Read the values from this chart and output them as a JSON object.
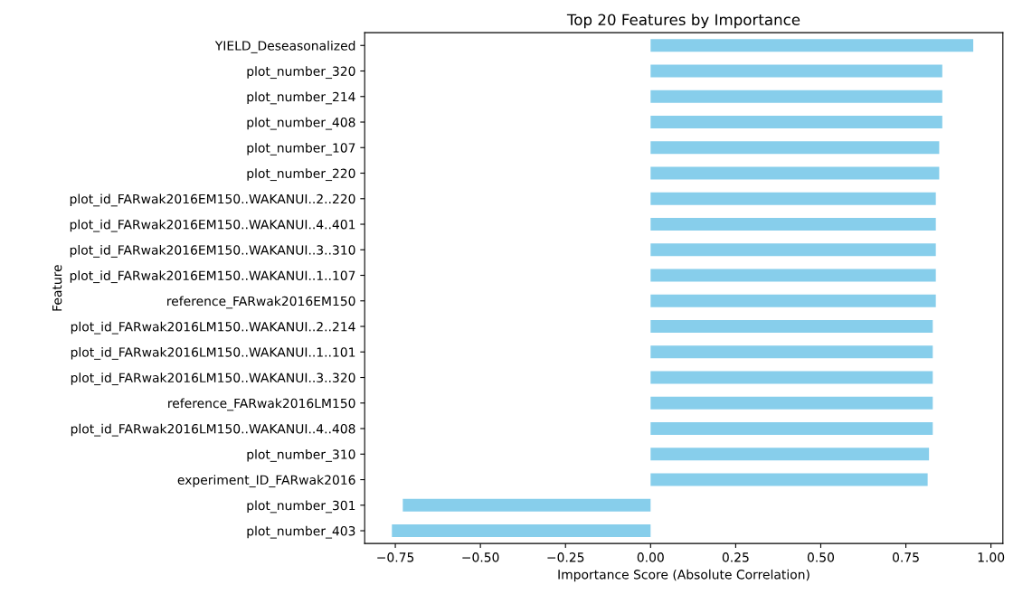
{
  "chart_data": {
    "type": "bar",
    "orientation": "horizontal",
    "title": "Top 20 Features by Importance",
    "xlabel": "Importance Score (Absolute Correlation)",
    "ylabel": "Feature",
    "categories": [
      "YIELD_Deseasonalized",
      "plot_number_320",
      "plot_number_214",
      "plot_number_408",
      "plot_number_107",
      "plot_number_220",
      "plot_id_FARwak2016EM150..WAKANUI..2..220",
      "plot_id_FARwak2016EM150..WAKANUI..4..401",
      "plot_id_FARwak2016EM150..WAKANUI..3..310",
      "plot_id_FARwak2016EM150..WAKANUI..1..107",
      "reference_FARwak2016EM150",
      "plot_id_FARwak2016LM150..WAKANUI..2..214",
      "plot_id_FARwak2016LM150..WAKANUI..1..101",
      "plot_id_FARwak2016LM150..WAKANUI..3..320",
      "reference_FARwak2016LM150",
      "plot_id_FARwak2016LM150..WAKANUI..4..408",
      "plot_number_310",
      "experiment_ID_FARwak2016",
      "plot_number_301",
      "plot_number_403"
    ],
    "values": [
      0.948,
      0.857,
      0.857,
      0.857,
      0.848,
      0.848,
      0.838,
      0.838,
      0.838,
      0.838,
      0.838,
      0.829,
      0.829,
      0.829,
      0.829,
      0.829,
      0.818,
      0.814,
      -0.728,
      -0.76
    ],
    "color": "#87ceeb",
    "xlim": [
      -0.84,
      1.035
    ],
    "xticks": [
      {
        "value": -0.75,
        "label": "−0.75"
      },
      {
        "value": -0.5,
        "label": "−0.50"
      },
      {
        "value": -0.25,
        "label": "−0.25"
      },
      {
        "value": 0,
        "label": "0.00"
      },
      {
        "value": 0.25,
        "label": "0.25"
      },
      {
        "value": 0.5,
        "label": "0.50"
      },
      {
        "value": 0.75,
        "label": "0.75"
      },
      {
        "value": 1,
        "label": "1.00"
      }
    ],
    "grid": false,
    "legend": false
  }
}
